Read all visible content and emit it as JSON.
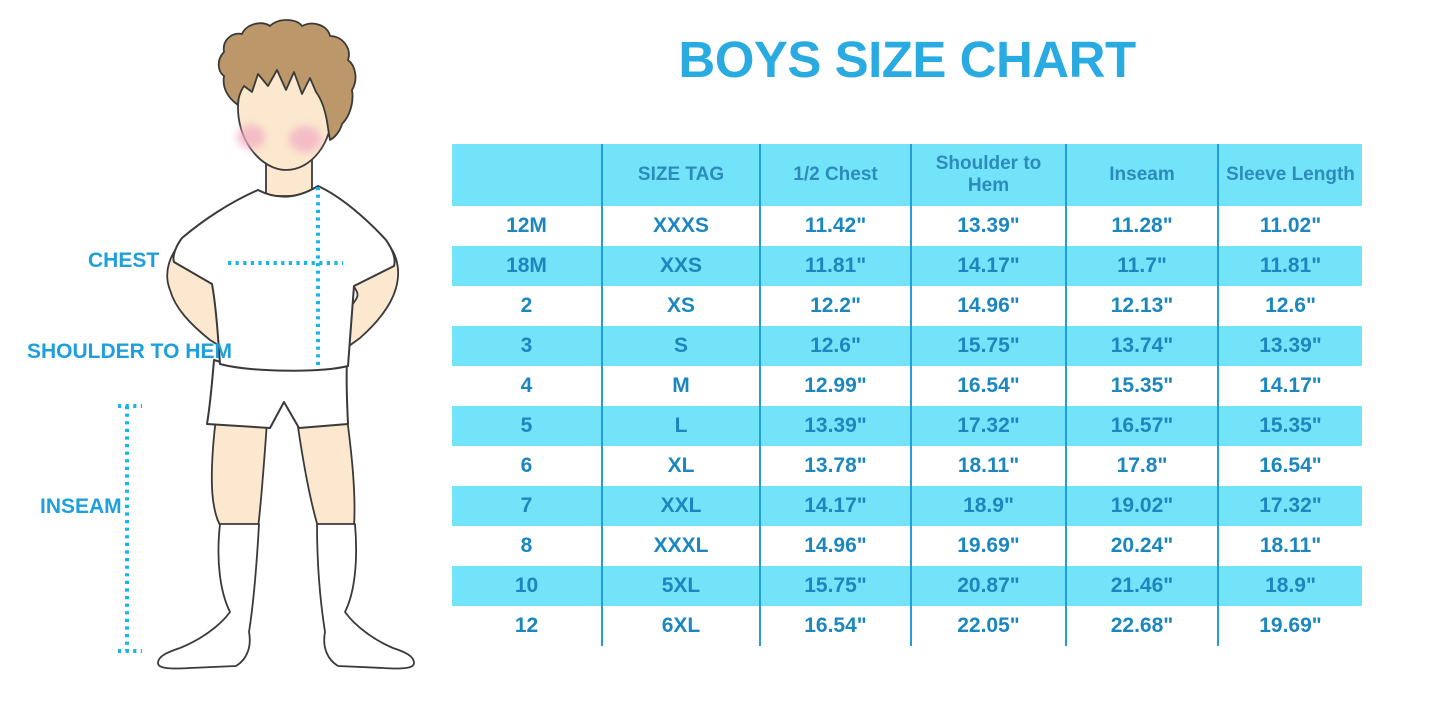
{
  "title": "BOYS SIZE CHART",
  "figure": {
    "labels": {
      "chest": "CHEST",
      "shoulder_to_hem": "SHOULDER TO HEM",
      "inseam": "INSEAM"
    }
  },
  "chart_data": {
    "type": "table",
    "title": "BOYS SIZE CHART",
    "columns": [
      "",
      "SIZE TAG",
      "1/2 Chest",
      "Shoulder to Hem",
      "Inseam",
      "Sleeve Length"
    ],
    "rows": [
      [
        "12M",
        "XXXS",
        "11.42\"",
        "13.39\"",
        "11.28\"",
        "11.02\""
      ],
      [
        "18M",
        "XXS",
        "11.81\"",
        "14.17\"",
        "11.7\"",
        "11.81\""
      ],
      [
        "2",
        "XS",
        "12.2\"",
        "14.96\"",
        "12.13\"",
        "12.6\""
      ],
      [
        "3",
        "S",
        "12.6\"",
        "15.75\"",
        "13.74\"",
        "13.39\""
      ],
      [
        "4",
        "M",
        "12.99\"",
        "16.54\"",
        "15.35\"",
        "14.17\""
      ],
      [
        "5",
        "L",
        "13.39\"",
        "17.32\"",
        "16.57\"",
        "15.35\""
      ],
      [
        "6",
        "XL",
        "13.78\"",
        "18.11\"",
        "17.8\"",
        "16.54\""
      ],
      [
        "7",
        "XXL",
        "14.17\"",
        "18.9\"",
        "19.02\"",
        "17.32\""
      ],
      [
        "8",
        "XXXL",
        "14.96\"",
        "19.69\"",
        "20.24\"",
        "18.11\""
      ],
      [
        "10",
        "5XL",
        "15.75\"",
        "20.87\"",
        "21.46\"",
        "18.9\""
      ],
      [
        "12",
        "6XL",
        "16.54\"",
        "22.05\"",
        "22.68\"",
        "19.69\""
      ]
    ],
    "banded_rows": "header and even data rows (18M, 3, 5, 7, 10) have light blue background",
    "legend_position": "none",
    "grid": "vertical column dividers only"
  },
  "colors": {
    "accent": "#29ABE2",
    "label": "#1F9FDC",
    "band": "#73E3FA",
    "divider": "#219FD6",
    "cell_text": "#1B87BE",
    "header_text": "#2B8CBB",
    "dot": "#19B5EA",
    "skin": "#FBE8CE",
    "hair": "#BB9769",
    "blush": "#F2AEC4",
    "outline": "#3A3A3A"
  }
}
